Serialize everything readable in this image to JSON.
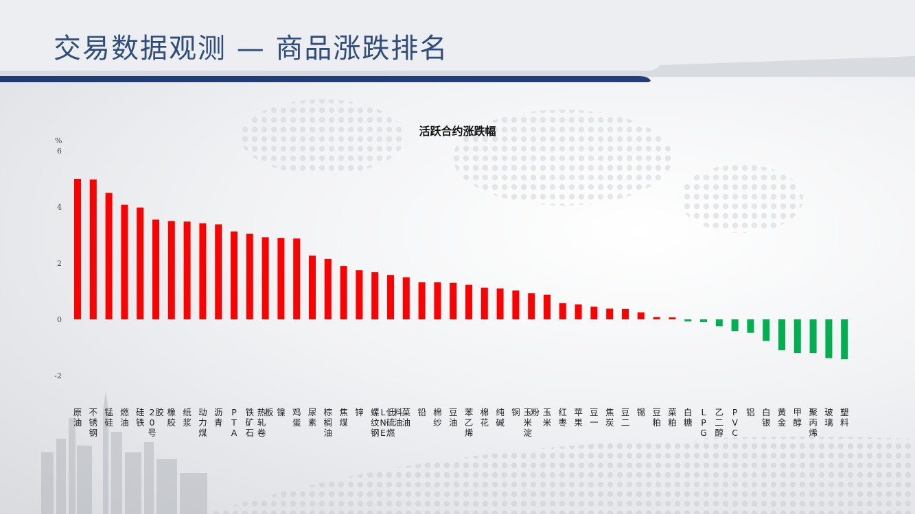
{
  "page": {
    "title": "交易数据观测 — 商品涨跌排名"
  },
  "colors": {
    "up": "#ff0000",
    "down": "#00b050",
    "title": "#2e4d7b",
    "band": "#1f3b72"
  },
  "chart_data": {
    "type": "bar",
    "title": "活跃合约涨跌幅",
    "ylabel": "%",
    "ylim": [
      -2,
      6
    ],
    "yticks": [
      6,
      4,
      2,
      0,
      -2
    ],
    "grid": false,
    "categories": [
      "原油",
      "不锈钢",
      "锰硅",
      "燃油",
      "硅铁",
      "20号胶",
      "橡胶",
      "纸浆",
      "动力煤",
      "沥青",
      "PTA",
      "铁矿石",
      "热轧卷板",
      "镍",
      "鸡蛋",
      "尿素",
      "棕榈油",
      "焦煤",
      "锌",
      "螺纹钢",
      "LNE低硫燃料油",
      "菜油",
      "铅",
      "棉纱",
      "豆油",
      "苯乙烯",
      "棉花",
      "纯碱",
      "铜",
      "玉米淀粉",
      "玉米",
      "红枣",
      "苹果",
      "豆一",
      "焦炭",
      "豆二",
      "锡",
      "豆粕",
      "菜粕",
      "白糖",
      "LPG",
      "乙二醇",
      "PVC",
      "铝",
      "白银",
      "黄金",
      "甲醇",
      "聚丙烯",
      "玻璃",
      "塑料"
    ],
    "values": [
      5.0,
      4.98,
      4.5,
      4.08,
      3.98,
      3.55,
      3.5,
      3.48,
      3.42,
      3.38,
      3.13,
      3.05,
      2.92,
      2.9,
      2.88,
      2.27,
      2.15,
      1.9,
      1.75,
      1.68,
      1.58,
      1.5,
      1.32,
      1.32,
      1.3,
      1.23,
      1.13,
      1.1,
      1.03,
      0.93,
      0.88,
      0.58,
      0.53,
      0.45,
      0.38,
      0.37,
      0.25,
      0.08,
      0.07,
      -0.07,
      -0.1,
      -0.25,
      -0.42,
      -0.48,
      -0.77,
      -1.1,
      -1.2,
      -1.2,
      -1.38,
      -1.42
    ]
  }
}
